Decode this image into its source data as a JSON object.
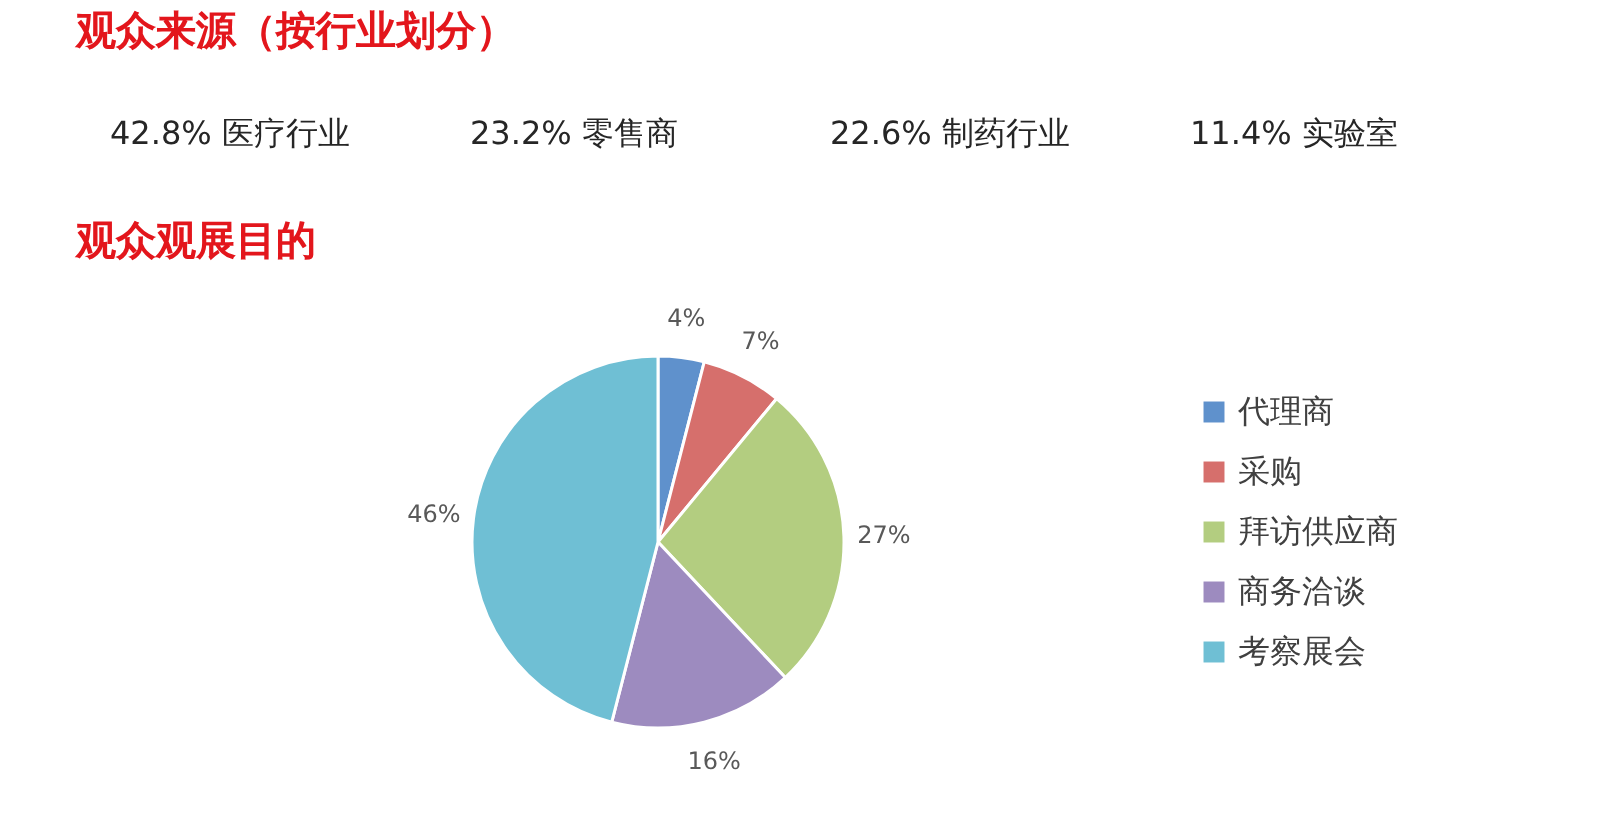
{
  "chart_data": [
    {
      "type": "other",
      "title": "观众来源（按行业划分）",
      "annotations": [
        "42.8% 医疗行业",
        "23.2% 零售商",
        "22.6% 制药行业",
        "11.4% 实验室"
      ]
    },
    {
      "type": "pie",
      "title": "观众观展目的",
      "categories": [
        "代理商",
        "采购",
        "拜访供应商",
        "商务洽谈",
        "考察展会"
      ],
      "values": [
        4,
        7,
        27,
        16,
        46
      ],
      "colors": [
        "#5f91cc",
        "#d66f6c",
        "#b3cd80",
        "#9d8bbf",
        "#6fbfd4"
      ],
      "value_labels": [
        "4%",
        "7%",
        "27%",
        "16%",
        "46%"
      ],
      "legend": "right"
    }
  ]
}
